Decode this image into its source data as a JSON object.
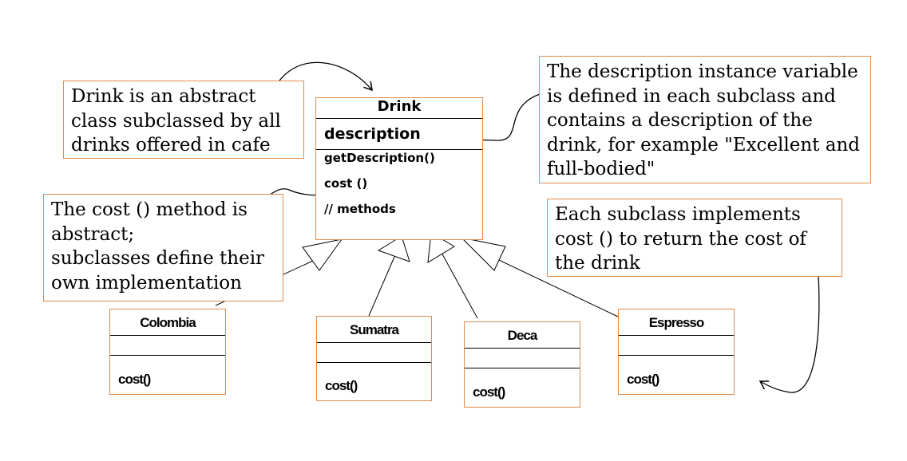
{
  "classes": {
    "drink": {
      "name": "Drink",
      "attribute": "description",
      "methods": [
        "getDescription()",
        "cost ()",
        "// methods"
      ]
    },
    "colombia": {
      "name": "Colombia",
      "method": "cost()"
    },
    "sumatra": {
      "name": "Sumatra",
      "method": "cost()"
    },
    "deca": {
      "name": "Deca",
      "method": "cost()"
    },
    "espresso": {
      "name": "Espresso",
      "method": "cost()"
    }
  },
  "notes": {
    "abstract_class": [
      "Drink is an abstract",
      "class subclassed by all",
      "drinks offered in cafe"
    ],
    "cost_method": [
      "The cost () method is",
      "abstract;",
      "subclasses define their",
      "own implementation"
    ],
    "description_var": [
      "The description instance variable",
      "is defined in each subclass and",
      "contains a description of the",
      "drink, for example \"Excellent and",
      "full-bodied\""
    ],
    "subclass_impl": [
      "Each subclass implements",
      "cost () to return the cost of",
      "the drink"
    ]
  },
  "colors": {
    "box_border": "#e08a4a",
    "line": "#000000"
  }
}
